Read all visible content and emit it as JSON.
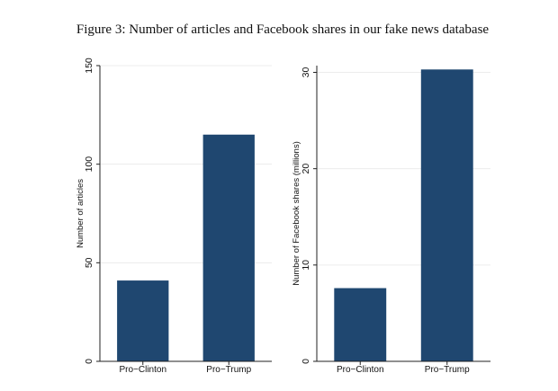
{
  "title": "Figure 3: Number of articles and Facebook shares in our fake news database",
  "chart_data": [
    {
      "type": "bar",
      "categories": [
        "Pro−Clinton",
        "Pro−Trump"
      ],
      "values": [
        41,
        115
      ],
      "ylabel": "Number of articles",
      "ylim": [
        0,
        150
      ],
      "yticks": [
        0,
        50,
        100,
        150
      ],
      "yticklabels": [
        "0",
        "50",
        "100",
        "150"
      ],
      "grid": true,
      "bar_color": "#1f4770"
    },
    {
      "type": "bar",
      "categories": [
        "Pro−Clinton",
        "Pro−Trump"
      ],
      "values": [
        7.6,
        30.3
      ],
      "ylabel": "Number of Facebook shares (millions)",
      "ylim": [
        0,
        30.7
      ],
      "yticks": [
        0,
        10,
        20,
        30
      ],
      "yticklabels": [
        "0",
        "10",
        "20",
        "30"
      ],
      "grid": true,
      "bar_color": "#1f4770"
    }
  ]
}
